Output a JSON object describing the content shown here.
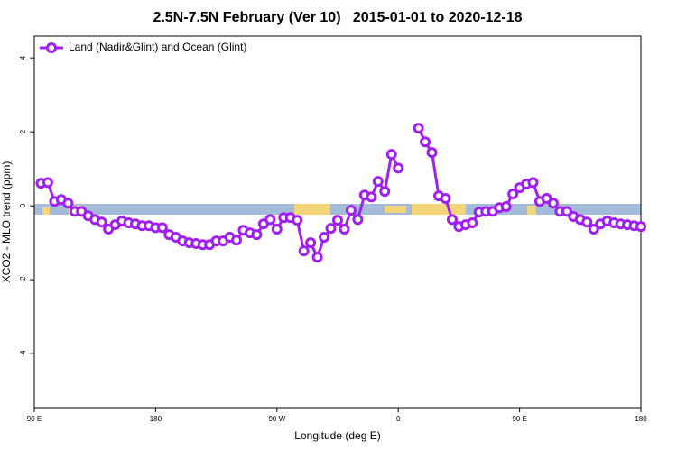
{
  "chart_data": {
    "type": "line",
    "title": "2.5N-7.5N February (Ver 10)   2015-01-01 to 2020-12-18",
    "xlabel": "Longitude (deg E)",
    "ylabel": "XCO2 - MLO trend (ppm)",
    "xlim": [
      90,
      540
    ],
    "ylim": [
      -5.46,
      4.59
    ],
    "xticks": [
      {
        "value": 90,
        "label": "90 E"
      },
      180,
      {
        "value": 270,
        "label": "90 W"
      },
      {
        "value": 360,
        "label": "0"
      },
      {
        "value": 450,
        "label": "90 E"
      },
      {
        "value": 540,
        "label": "180"
      }
    ],
    "yticks": [
      -4,
      -2,
      0,
      2,
      4
    ],
    "grid": false,
    "legend": "top-left",
    "x": [
      95,
      100,
      105,
      110,
      115,
      120,
      125,
      130,
      135,
      140,
      145,
      150,
      155,
      160,
      165,
      170,
      175,
      180,
      185,
      190,
      195,
      200,
      205,
      210,
      215,
      220,
      225,
      230,
      235,
      240,
      245,
      250,
      255,
      260,
      265,
      270,
      275,
      280,
      285,
      290,
      295,
      300,
      305,
      310,
      315,
      320,
      325,
      330,
      335,
      340,
      345,
      350,
      355,
      360,
      365,
      370,
      375,
      380,
      385,
      390,
      395,
      400,
      405,
      410,
      415,
      420,
      425,
      430,
      435,
      440,
      445,
      450,
      455,
      460,
      465,
      470,
      475,
      480,
      485,
      490,
      495,
      500,
      505,
      510,
      515,
      520,
      525,
      530,
      535,
      540
    ],
    "series": [
      {
        "name": "Land (Nadir&Glint) and Ocean (Glint)",
        "color": "#a020f0",
        "values": [
          0.61,
          0.63,
          0.12,
          0.17,
          0.07,
          -0.15,
          -0.15,
          -0.27,
          -0.37,
          -0.44,
          -0.63,
          -0.51,
          -0.41,
          -0.46,
          -0.49,
          -0.54,
          -0.54,
          -0.59,
          -0.59,
          -0.78,
          -0.85,
          -0.95,
          -1.0,
          -1.02,
          -1.05,
          -1.05,
          -0.95,
          -0.95,
          -0.85,
          -0.93,
          -0.66,
          -0.73,
          -0.78,
          -0.49,
          -0.37,
          -0.63,
          -0.32,
          -0.32,
          -0.39,
          -1.22,
          -1.0,
          -1.39,
          -0.85,
          -0.61,
          -0.39,
          -0.63,
          -0.12,
          -0.37,
          0.29,
          0.24,
          0.66,
          0.39,
          1.39,
          1.02,
          null,
          null,
          2.1,
          1.73,
          1.44,
          0.27,
          0.2,
          -0.37,
          -0.56,
          -0.51,
          -0.46,
          -0.17,
          -0.15,
          -0.15,
          -0.05,
          -0.02,
          0.32,
          0.49,
          0.59,
          0.63,
          0.12,
          0.2,
          0.07,
          -0.15,
          -0.15,
          -0.29,
          -0.37,
          -0.44,
          -0.63,
          -0.49,
          -0.41,
          -0.46,
          -0.49,
          -0.51,
          -0.54,
          -0.56
        ]
      }
    ]
  }
}
